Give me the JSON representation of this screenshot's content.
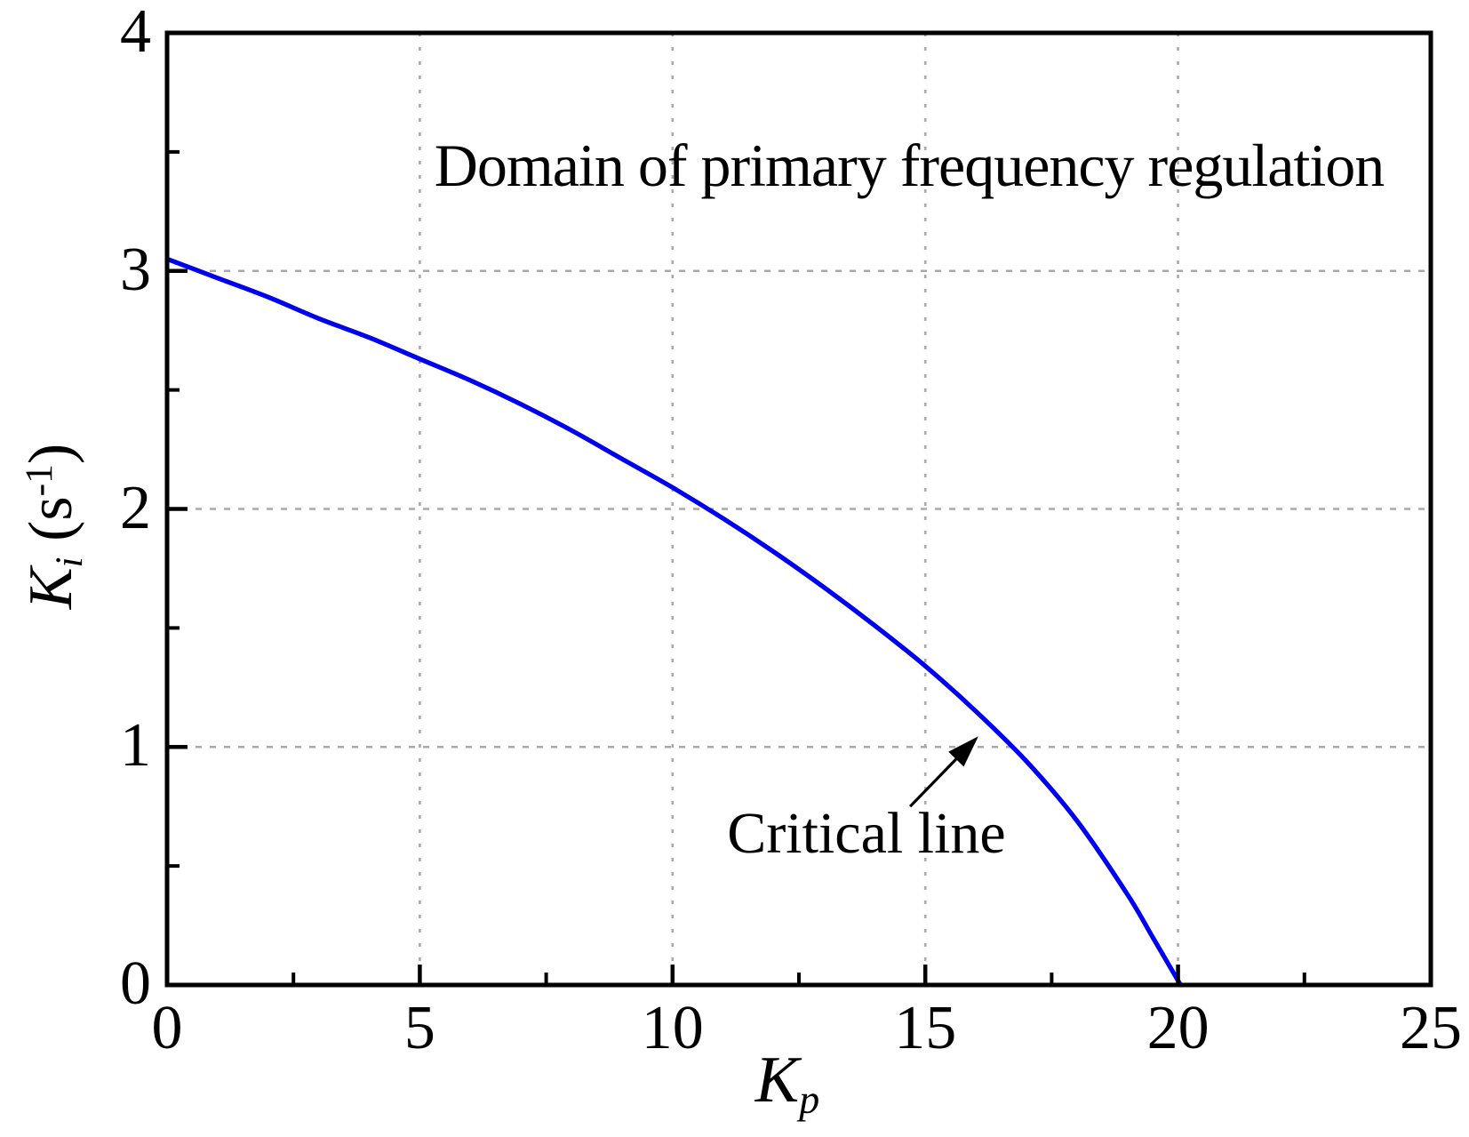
{
  "figure": {
    "title": "Domain of primary frequency regulation",
    "annotation_label": "Critical line"
  },
  "x_axis": {
    "label_main": "K",
    "label_sub": "p",
    "tick_labels": [
      "0",
      "5",
      "10",
      "15",
      "20",
      "25"
    ]
  },
  "y_axis": {
    "label_main": "K",
    "label_sub": "i",
    "label_unit_prefix": " (s",
    "label_sup": "-1",
    "label_suffix": ")",
    "tick_labels": [
      "0",
      "1",
      "2",
      "3",
      "4"
    ]
  },
  "colors": {
    "curve": "#0000EE",
    "grid": "#a9a9a9",
    "frame": "#000000",
    "text": "#000000",
    "background": "#ffffff"
  },
  "chart_data": {
    "type": "line",
    "title": "Domain of primary frequency regulation",
    "xlabel": "K_p",
    "ylabel": "K_i (s^-1)",
    "xlim": [
      0,
      25
    ],
    "ylim": [
      0,
      4
    ],
    "grid": "major only, dashed gray, on",
    "legend_position": "none",
    "x_ticks_major": [
      0,
      5,
      10,
      15,
      20,
      25
    ],
    "x_ticks_minor": [
      2.5,
      7.5,
      12.5,
      17.5,
      22.5
    ],
    "y_ticks_major": [
      0,
      1,
      2,
      3,
      4
    ],
    "y_ticks_minor": [
      0.5,
      1.5,
      2.5,
      3.5
    ],
    "grid_x_values": [
      5,
      10,
      15,
      20
    ],
    "grid_y_values": [
      1,
      2,
      3
    ],
    "series": [
      {
        "name": "Critical line",
        "color": "#0000EE",
        "x": [
          0,
          1,
          2,
          3,
          4,
          5,
          6,
          7,
          8,
          9,
          10,
          11,
          12,
          13,
          14,
          15,
          16,
          17,
          18,
          19,
          19.5,
          20.05
        ],
        "y": [
          3.05,
          2.97,
          2.89,
          2.8,
          2.72,
          2.63,
          2.54,
          2.44,
          2.33,
          2.21,
          2.09,
          1.96,
          1.82,
          1.67,
          1.51,
          1.34,
          1.15,
          0.94,
          0.69,
          0.38,
          0.2,
          0
        ]
      }
    ],
    "annotations": [
      {
        "text": "Critical line",
        "arrow_tail_xy": [
          14.7,
          0.75
        ],
        "arrow_tip_xy": [
          16.05,
          1.045
        ]
      }
    ]
  }
}
